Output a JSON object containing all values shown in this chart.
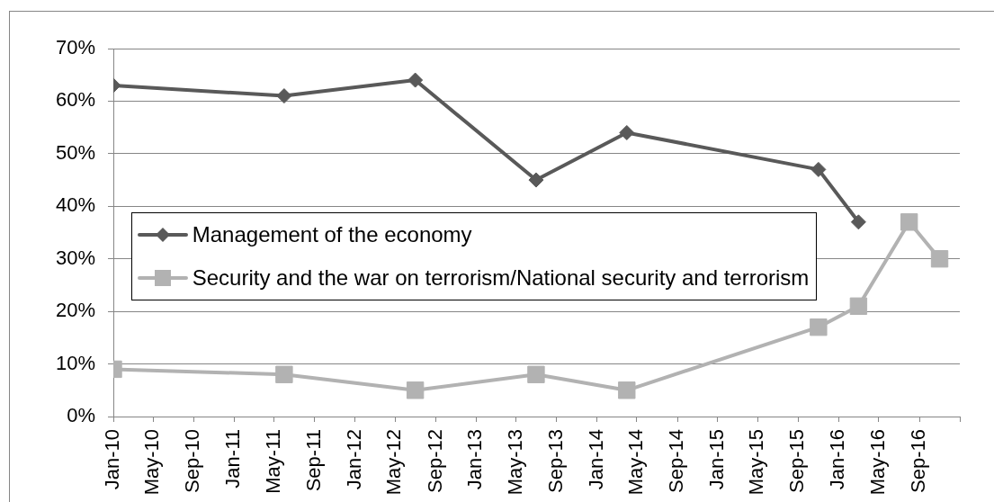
{
  "chart_data": {
    "type": "line",
    "series": [
      {
        "name": "Management of the economy",
        "color": "#595959",
        "marker": "diamond",
        "x": [
          "2010-01",
          "2011-06",
          "2012-07",
          "2013-07",
          "2014-04",
          "2015-11",
          "2016-03"
        ],
        "values": [
          63,
          61,
          64,
          45,
          54,
          47,
          37
        ]
      },
      {
        "name": "Security and the war on terrorism/National security and terrorism",
        "color": "#b2b2b2",
        "marker": "square",
        "x": [
          "2010-01",
          "2011-06",
          "2012-07",
          "2013-07",
          "2014-04",
          "2015-11",
          "2016-03",
          "2016-08",
          "2016-11"
        ],
        "values": [
          9,
          8,
          5,
          8,
          5,
          17,
          21,
          37,
          30
        ]
      }
    ],
    "xlim": [
      "2010-01",
      "2017-01"
    ],
    "xticks": [
      {
        "value": "2010-01",
        "label": "Jan-10"
      },
      {
        "value": "2010-05",
        "label": "May-10"
      },
      {
        "value": "2010-09",
        "label": "Sep-10"
      },
      {
        "value": "2011-01",
        "label": "Jan-11"
      },
      {
        "value": "2011-05",
        "label": "May-11"
      },
      {
        "value": "2011-09",
        "label": "Sep-11"
      },
      {
        "value": "2012-01",
        "label": "Jan-12"
      },
      {
        "value": "2012-05",
        "label": "May-12"
      },
      {
        "value": "2012-09",
        "label": "Sep-12"
      },
      {
        "value": "2013-01",
        "label": "Jan-13"
      },
      {
        "value": "2013-05",
        "label": "May-13"
      },
      {
        "value": "2013-09",
        "label": "Sep-13"
      },
      {
        "value": "2014-01",
        "label": "Jan-14"
      },
      {
        "value": "2014-05",
        "label": "May-14"
      },
      {
        "value": "2014-09",
        "label": "Sep-14"
      },
      {
        "value": "2015-01",
        "label": "Jan-15"
      },
      {
        "value": "2015-05",
        "label": "May-15"
      },
      {
        "value": "2015-09",
        "label": "Sep-15"
      },
      {
        "value": "2016-01",
        "label": "Jan-16"
      },
      {
        "value": "2016-05",
        "label": "May-16"
      },
      {
        "value": "2016-09",
        "label": "Sep-16"
      },
      {
        "value": "2017-01",
        "label": null
      }
    ],
    "ylim": [
      0,
      70
    ],
    "yticks": [
      {
        "value": 0,
        "label": "0%"
      },
      {
        "value": 10,
        "label": "10%"
      },
      {
        "value": 20,
        "label": "20%"
      },
      {
        "value": 30,
        "label": "30%"
      },
      {
        "value": 40,
        "label": "40%"
      },
      {
        "value": 50,
        "label": "50%"
      },
      {
        "value": 60,
        "label": "60%"
      },
      {
        "value": 70,
        "label": "70%"
      }
    ],
    "grid": "y",
    "legend": "left",
    "line_style": "solid"
  }
}
